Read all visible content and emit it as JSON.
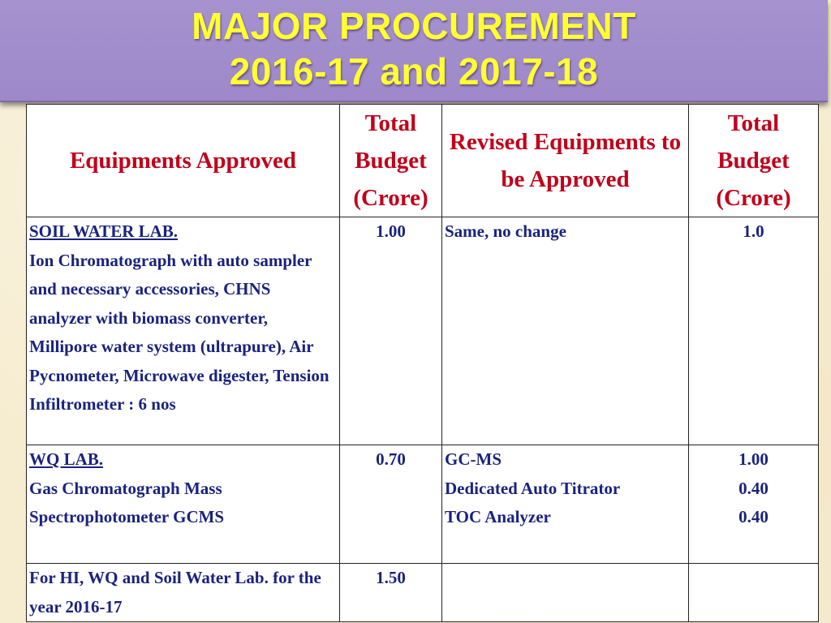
{
  "title": {
    "line1": "MAJOR PROCUREMENT",
    "line2": "2016-17 and 2017-18"
  },
  "table": {
    "headers": {
      "col1": "Equipments Approved",
      "col2": "Total Budget (Crore)",
      "col3": "Revised Equipments to be Approved",
      "col4": "Total Budget (Crore)"
    },
    "rows": [
      {
        "section": "SOIL WATER LAB.",
        "description": "Ion Chromatograph with auto sampler and necessary accessories, CHNS analyzer with biomass converter, Millipore water system (ultrapure),  Air Pycnometer, Microwave digester, Tension Infiltrometer : 6 nos",
        "budget": "1.00",
        "revised": [
          "Same, no change"
        ],
        "revised_budget": [
          "1.0"
        ]
      },
      {
        "section": "WQ LAB.",
        "description": "Gas Chromatograph Mass Spectrophotometer GCMS",
        "budget": "0.70",
        "revised": [
          "GC-MS",
          "Dedicated Auto Titrator",
          "TOC Analyzer"
        ],
        "revised_budget": [
          "1.00",
          "0.40",
          "0.40"
        ]
      },
      {
        "section": "",
        "description": "For HI, WQ and Soil Water Lab. for the year 2016-17",
        "budget": "1.50",
        "revised": [],
        "revised_budget": []
      }
    ]
  }
}
